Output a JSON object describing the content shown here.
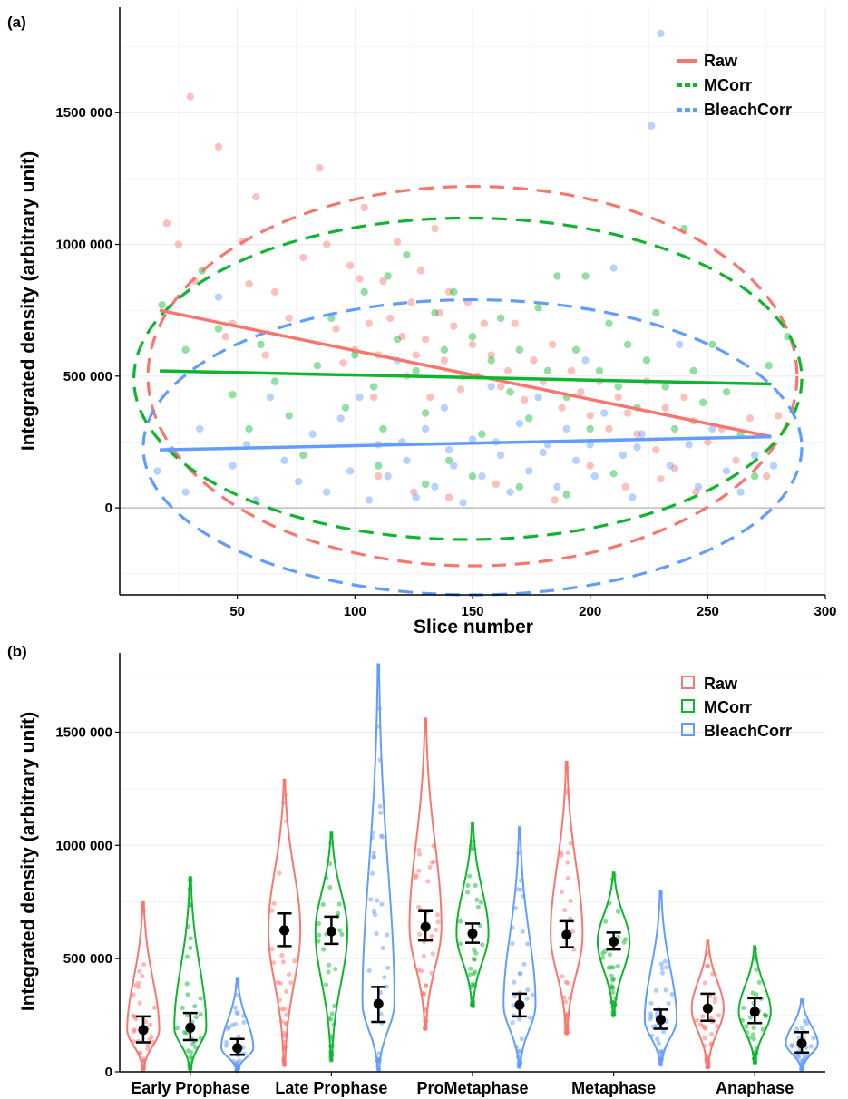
{
  "colors": {
    "raw": "#f8766d",
    "mcorr": "#0fb52f",
    "bleach": "#619cff"
  },
  "chart_data": [
    {
      "panel": "(a)",
      "type": "scatter",
      "xlabel": "Slice number",
      "ylabel": "Integrated density (arbitrary unit)",
      "xlim": [
        0,
        300
      ],
      "ylim": [
        -330000,
        1900000
      ],
      "xticks": [
        50,
        100,
        150,
        200,
        250,
        300
      ],
      "xtick_labels": [
        "50",
        "100",
        "150",
        "200",
        "250",
        "300"
      ],
      "yticks": [
        0,
        500000,
        1000000,
        1500000
      ],
      "ytick_labels": [
        "0",
        "500 000",
        "1000 000",
        "1500 000"
      ],
      "grid": true,
      "legend_position": "top-right",
      "series": [
        {
          "name": "Raw",
          "color": "#f8766d",
          "trend_line": {
            "x": [
              17,
              277
            ],
            "y": [
              750000,
              270000
            ]
          },
          "ellipse": {
            "cx": 150,
            "cy": 500000,
            "rx": 138,
            "ry": 720000
          },
          "points": [
            [
              20,
              1080000
            ],
            [
              25,
              1000000
            ],
            [
              30,
              1560000
            ],
            [
              32,
              860000
            ],
            [
              42,
              1370000
            ],
            [
              45,
              650000
            ],
            [
              48,
              700000
            ],
            [
              52,
              1010000
            ],
            [
              55,
              850000
            ],
            [
              58,
              1180000
            ],
            [
              62,
              580000
            ],
            [
              66,
              820000
            ],
            [
              72,
              720000
            ],
            [
              78,
              950000
            ],
            [
              85,
              1290000
            ],
            [
              88,
              1000000
            ],
            [
              92,
              680000
            ],
            [
              95,
              550000
            ],
            [
              98,
              920000
            ],
            [
              100,
              600000
            ],
            [
              102,
              870000
            ],
            [
              104,
              1140000
            ],
            [
              106,
              700000
            ],
            [
              108,
              420000
            ],
            [
              110,
              580000
            ],
            [
              112,
              860000
            ],
            [
              115,
              720000
            ],
            [
              118,
              1010000
            ],
            [
              120,
              650000
            ],
            [
              122,
              500000
            ],
            [
              124,
              780000
            ],
            [
              126,
              580000
            ],
            [
              128,
              900000
            ],
            [
              130,
              640000
            ],
            [
              132,
              420000
            ],
            [
              134,
              1060000
            ],
            [
              136,
              740000
            ],
            [
              138,
              560000
            ],
            [
              140,
              820000
            ],
            [
              142,
              690000
            ],
            [
              145,
              450000
            ],
            [
              148,
              780000
            ],
            [
              150,
              620000
            ],
            [
              152,
              500000
            ],
            [
              155,
              700000
            ],
            [
              158,
              580000
            ],
            [
              162,
              460000
            ],
            [
              165,
              520000
            ],
            [
              168,
              700000
            ],
            [
              172,
              410000
            ],
            [
              176,
              560000
            ],
            [
              180,
              480000
            ],
            [
              184,
              620000
            ],
            [
              188,
              380000
            ],
            [
              192,
              520000
            ],
            [
              196,
              440000
            ],
            [
              200,
              350000
            ],
            [
              204,
              480000
            ],
            [
              208,
              300000
            ],
            [
              212,
              420000
            ],
            [
              216,
              360000
            ],
            [
              220,
              280000
            ],
            [
              224,
              480000
            ],
            [
              228,
              220000
            ],
            [
              232,
              380000
            ],
            [
              236,
              150000
            ],
            [
              240,
              420000
            ],
            [
              244,
              330000
            ],
            [
              250,
              250000
            ],
            [
              256,
              300000
            ],
            [
              262,
              180000
            ],
            [
              268,
              340000
            ],
            [
              275,
              120000
            ],
            [
              280,
              350000
            ],
            [
              110,
              120000
            ],
            [
              125,
              60000
            ],
            [
              140,
              40000
            ],
            [
              160,
              90000
            ],
            [
              185,
              30000
            ],
            [
              200,
              160000
            ],
            [
              215,
              80000
            ],
            [
              230,
              110000
            ],
            [
              245,
              60000
            ]
          ]
        },
        {
          "name": "MCorr",
          "color": "#0fb52f",
          "trend_line": {
            "x": [
              17,
              277
            ],
            "y": [
              520000,
              470000
            ]
          },
          "ellipse": {
            "cx": 148,
            "cy": 490000,
            "rx": 142,
            "ry": 610000
          },
          "points": [
            [
              18,
              770000
            ],
            [
              28,
              600000
            ],
            [
              35,
              900000
            ],
            [
              42,
              680000
            ],
            [
              48,
              430000
            ],
            [
              55,
              300000
            ],
            [
              60,
              620000
            ],
            [
              66,
              480000
            ],
            [
              72,
              350000
            ],
            [
              78,
              200000
            ],
            [
              84,
              540000
            ],
            [
              90,
              720000
            ],
            [
              96,
              380000
            ],
            [
              100,
              580000
            ],
            [
              104,
              820000
            ],
            [
              108,
              460000
            ],
            [
              112,
              300000
            ],
            [
              114,
              880000
            ],
            [
              118,
              640000
            ],
            [
              122,
              960000
            ],
            [
              126,
              520000
            ],
            [
              130,
              360000
            ],
            [
              134,
              740000
            ],
            [
              138,
              600000
            ],
            [
              140,
              180000
            ],
            [
              142,
              820000
            ],
            [
              146,
              500000
            ],
            [
              150,
              650000
            ],
            [
              154,
              280000
            ],
            [
              158,
              560000
            ],
            [
              162,
              720000
            ],
            [
              166,
              440000
            ],
            [
              170,
              600000
            ],
            [
              174,
              340000
            ],
            [
              178,
              760000
            ],
            [
              182,
              520000
            ],
            [
              186,
              880000
            ],
            [
              190,
              420000
            ],
            [
              194,
              600000
            ],
            [
              198,
              880000
            ],
            [
              200,
              300000
            ],
            [
              204,
              520000
            ],
            [
              208,
              700000
            ],
            [
              212,
              460000
            ],
            [
              216,
              620000
            ],
            [
              220,
              380000
            ],
            [
              224,
              560000
            ],
            [
              228,
              740000
            ],
            [
              232,
              460000
            ],
            [
              236,
              300000
            ],
            [
              240,
              1060000
            ],
            [
              244,
              520000
            ],
            [
              248,
              400000
            ],
            [
              252,
              620000
            ],
            [
              258,
              440000
            ],
            [
              264,
              280000
            ],
            [
              270,
              120000
            ],
            [
              276,
              540000
            ],
            [
              284,
              650000
            ],
            [
              150,
              120000
            ],
            [
              170,
              80000
            ],
            [
              190,
              50000
            ],
            [
              210,
              130000
            ],
            [
              130,
              90000
            ],
            [
              110,
              160000
            ]
          ]
        },
        {
          "name": "BleachCorr",
          "color": "#619cff",
          "trend_line": {
            "x": [
              17,
              277
            ],
            "y": [
              220000,
              270000
            ]
          },
          "ellipse": {
            "cx": 150,
            "cy": 230000,
            "rx": 140,
            "ry": 560000
          },
          "points": [
            [
              16,
              140000
            ],
            [
              22,
              220000
            ],
            [
              28,
              60000
            ],
            [
              34,
              300000
            ],
            [
              42,
              800000
            ],
            [
              48,
              160000
            ],
            [
              54,
              240000
            ],
            [
              58,
              30000
            ],
            [
              64,
              420000
            ],
            [
              70,
              180000
            ],
            [
              76,
              100000
            ],
            [
              82,
              280000
            ],
            [
              88,
              60000
            ],
            [
              94,
              340000
            ],
            [
              98,
              140000
            ],
            [
              102,
              420000
            ],
            [
              106,
              30000
            ],
            [
              110,
              240000
            ],
            [
              114,
              120000
            ],
            [
              118,
              560000
            ],
            [
              122,
              180000
            ],
            [
              126,
              40000
            ],
            [
              130,
              300000
            ],
            [
              134,
              80000
            ],
            [
              138,
              380000
            ],
            [
              142,
              160000
            ],
            [
              146,
              20000
            ],
            [
              150,
              260000
            ],
            [
              154,
              120000
            ],
            [
              158,
              460000
            ],
            [
              162,
              200000
            ],
            [
              166,
              60000
            ],
            [
              170,
              320000
            ],
            [
              174,
              140000
            ],
            [
              178,
              420000
            ],
            [
              182,
              240000
            ],
            [
              186,
              80000
            ],
            [
              190,
              300000
            ],
            [
              194,
              180000
            ],
            [
              198,
              560000
            ],
            [
              202,
              120000
            ],
            [
              206,
              360000
            ],
            [
              210,
              910000
            ],
            [
              214,
              200000
            ],
            [
              218,
              40000
            ],
            [
              222,
              280000
            ],
            [
              226,
              1450000
            ],
            [
              230,
              1800000
            ],
            [
              234,
              160000
            ],
            [
              238,
              620000
            ],
            [
              242,
              240000
            ],
            [
              246,
              80000
            ],
            [
              252,
              300000
            ],
            [
              258,
              140000
            ],
            [
              264,
              60000
            ],
            [
              270,
              200000
            ],
            [
              278,
              160000
            ],
            [
              120,
              250000
            ],
            [
              140,
              220000
            ],
            [
              160,
              250000
            ],
            [
              180,
              210000
            ],
            [
              200,
              240000
            ],
            [
              220,
              230000
            ]
          ]
        }
      ]
    },
    {
      "panel": "(b)",
      "type": "violin",
      "ylabel": "Integrated density (arbitrary unit)",
      "ylim": [
        0,
        1850000
      ],
      "yticks": [
        0,
        500000,
        1000000,
        1500000
      ],
      "ytick_labels": [
        "0",
        "500 000",
        "1000 000",
        "1500 000"
      ],
      "grid": true,
      "legend_position": "top-right",
      "categories": [
        "Early Prophase",
        "Late Prophase",
        "ProMetaphase",
        "Metaphase",
        "Anaphase"
      ],
      "series": [
        {
          "name": "Raw",
          "color": "#f8766d",
          "mean": [
            185000,
            625000,
            640000,
            605000,
            280000
          ],
          "ci_low": [
            130000,
            555000,
            580000,
            550000,
            225000
          ],
          "ci_high": [
            245000,
            700000,
            710000,
            665000,
            345000
          ],
          "max": [
            750000,
            1290000,
            1560000,
            1370000,
            580000
          ],
          "min": [
            10000,
            30000,
            190000,
            170000,
            20000
          ]
        },
        {
          "name": "MCorr",
          "color": "#0fb52f",
          "mean": [
            195000,
            620000,
            610000,
            575000,
            265000
          ],
          "ci_low": [
            140000,
            565000,
            570000,
            540000,
            215000
          ],
          "ci_high": [
            260000,
            685000,
            655000,
            615000,
            325000
          ],
          "max": [
            860000,
            1060000,
            1100000,
            880000,
            555000
          ],
          "min": [
            10000,
            50000,
            290000,
            250000,
            40000
          ]
        },
        {
          "name": "BleachCorr",
          "color": "#619cff",
          "mean": [
            105000,
            300000,
            295000,
            230000,
            125000
          ],
          "ci_low": [
            75000,
            220000,
            245000,
            190000,
            85000
          ],
          "ci_high": [
            145000,
            375000,
            345000,
            275000,
            175000
          ],
          "max": [
            410000,
            1800000,
            1080000,
            800000,
            320000
          ],
          "min": [
            5000,
            10000,
            20000,
            30000,
            10000
          ]
        }
      ]
    }
  ]
}
